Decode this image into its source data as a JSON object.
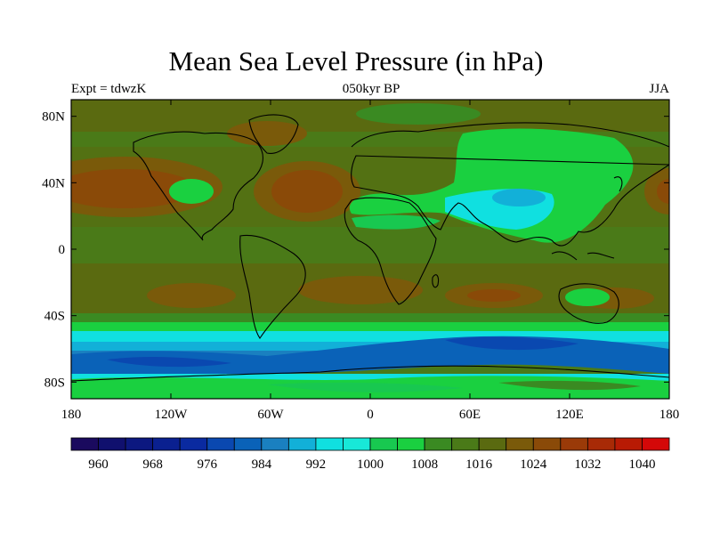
{
  "title": "Mean Sea Level Pressure (in hPa)",
  "left_label": "Expt = tdwzK",
  "center_label": "050kyr BP",
  "right_label": "JJA",
  "map": {
    "lon_range": [
      -180,
      180
    ],
    "lat_range": [
      -90,
      90
    ],
    "x_ticks": [
      {
        "value": -180,
        "label": "180"
      },
      {
        "value": -120,
        "label": "120W"
      },
      {
        "value": -60,
        "label": "60W"
      },
      {
        "value": 0,
        "label": "0"
      },
      {
        "value": 60,
        "label": "60E"
      },
      {
        "value": 120,
        "label": "120E"
      },
      {
        "value": 180,
        "label": "180"
      }
    ],
    "y_ticks": [
      {
        "value": 80,
        "label": "80N"
      },
      {
        "value": 40,
        "label": "40N"
      },
      {
        "value": 0,
        "label": "0"
      },
      {
        "value": -40,
        "label": "40S"
      },
      {
        "value": -80,
        "label": "80S"
      }
    ]
  },
  "colorbar": {
    "min": 956,
    "max": 1044,
    "step": 4,
    "colors": [
      "#1a0a5e",
      "#10106e",
      "#0c1880",
      "#0a2090",
      "#0a2aa0",
      "#0a48b0",
      "#0a62b8",
      "#1a80c0",
      "#12b0d8",
      "#10e0e0",
      "#18e8d8",
      "#18c850",
      "#1ad040",
      "#3a8a22",
      "#4a7a18",
      "#5a6a10",
      "#7a5a0a",
      "#8a4a08",
      "#9a3a08",
      "#a82a06",
      "#b81a04",
      "#d40808"
    ],
    "labels": [
      {
        "value": 960,
        "label": "960"
      },
      {
        "value": 968,
        "label": "968"
      },
      {
        "value": 976,
        "label": "976"
      },
      {
        "value": 984,
        "label": "984"
      },
      {
        "value": 992,
        "label": "992"
      },
      {
        "value": 1000,
        "label": "1000"
      },
      {
        "value": 1008,
        "label": "1008"
      },
      {
        "value": 1016,
        "label": "1016"
      },
      {
        "value": 1024,
        "label": "1024"
      },
      {
        "value": 1032,
        "label": "1032"
      },
      {
        "value": 1040,
        "label": "1040"
      }
    ]
  }
}
